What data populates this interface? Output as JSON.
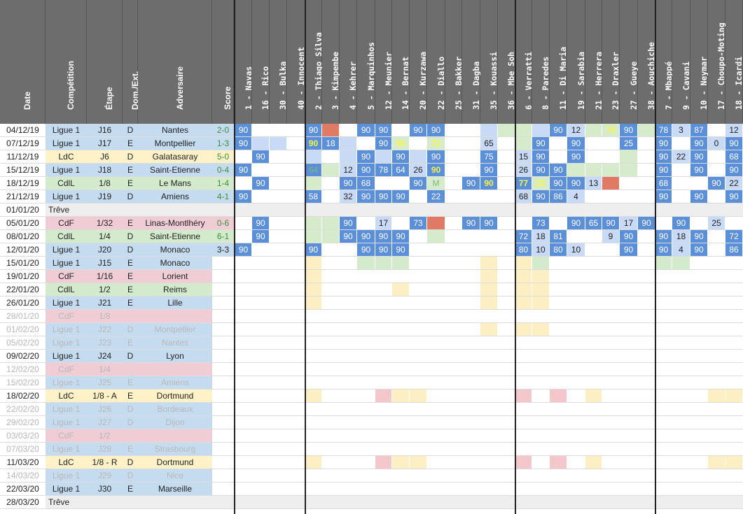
{
  "headers": [
    "Date",
    "Compétition",
    "Étape",
    "Dom./Ext.",
    "Adversaire",
    "Score"
  ],
  "players": [
    {
      "num": "1",
      "name": "Navas"
    },
    {
      "num": "16",
      "name": "Rico"
    },
    {
      "num": "30",
      "name": "Bulka"
    },
    {
      "num": "40",
      "name": "Innocent"
    },
    {
      "num": "2",
      "name": "Thiago Silva"
    },
    {
      "num": "3",
      "name": "Kimpembe"
    },
    {
      "num": "4",
      "name": "Kehrer"
    },
    {
      "num": "5",
      "name": "Marquinhos"
    },
    {
      "num": "12",
      "name": "Meunier"
    },
    {
      "num": "14",
      "name": "Bernat"
    },
    {
      "num": "20",
      "name": "Kurzawa"
    },
    {
      "num": "22",
      "name": "Diallo"
    },
    {
      "num": "25",
      "name": "Bakker"
    },
    {
      "num": "31",
      "name": "Dagba"
    },
    {
      "num": "35",
      "name": "Kouassi"
    },
    {
      "num": "36",
      "name": "Mbe Soh"
    },
    {
      "num": "6",
      "name": "Verratti"
    },
    {
      "num": "8",
      "name": "Paredes"
    },
    {
      "num": "11",
      "name": "Di Maria"
    },
    {
      "num": "19",
      "name": "Sarabia"
    },
    {
      "num": "21",
      "name": "Herrera"
    },
    {
      "num": "23",
      "name": "Draxler"
    },
    {
      "num": "27",
      "name": "Gueye"
    },
    {
      "num": "38",
      "name": "Aouchiche"
    },
    {
      "num": "7",
      "name": "Mbappé"
    },
    {
      "num": "9",
      "name": "Cavani"
    },
    {
      "num": "10",
      "name": "Neymar"
    },
    {
      "num": "17",
      "name": "Choupo-Moting"
    },
    {
      "num": "18",
      "name": "Icardi"
    }
  ],
  "colors": {
    "header_bg": "#6d6d6d",
    "header_text": "#ffffff",
    "ligue1": "#c5dcf0",
    "ldc": "#fff2c8",
    "cdf": "#f0cdd5",
    "cdl": "#d3ebcc",
    "treve": "#eeeeee",
    "future_text": "#b8b8b8",
    "starter": "#5b8fd8",
    "sub": "#c8daf5",
    "bench": "#d5ebcc",
    "injured": "#e07a64",
    "cup_pink": "#f3c7cc",
    "cup_yellow": "#fdefc4",
    "yellow_text": "#f5f54a",
    "green_text": "#7cb87c"
  },
  "matches": [
    {
      "date": "04/12/19",
      "comp": "Ligue 1",
      "stage": "J16",
      "venue": "D",
      "opponent": "Nantes",
      "score": "2-0",
      "status": "played",
      "cells": {
        "0": "S:90",
        "4": "S:90",
        "5": "X",
        "7": "S:90",
        "8": "S:90",
        "10": "S:90",
        "11": "S:90",
        "14": "u",
        "15": "b",
        "16": "b",
        "17": "u",
        "18": "S:90",
        "19": "u:12",
        "20": "b",
        "21": "b:78:y",
        "22": "S:90",
        "23": "b",
        "24": "S:78",
        "25": "u:3",
        "26": "S:87",
        "28": "u:12"
      }
    },
    {
      "date": "07/12/19",
      "comp": "Ligue 1",
      "stage": "J17",
      "venue": "E",
      "opponent": "Montpellier",
      "score": "1-3",
      "status": "played",
      "cells": {
        "0": "S:90",
        "1": "u",
        "2": "u",
        "4": "S:90:y",
        "5": "S:18",
        "6": "u",
        "8": "S:90",
        "9": "b:90:y",
        "11": "b:72:y",
        "14": "u:65",
        "16": "b",
        "17": "S:90",
        "19": "S:90",
        "22": "S:25",
        "24": "S:90",
        "26": "S:90",
        "27": "u:0",
        "28": "S:90"
      }
    },
    {
      "date": "11/12/19",
      "comp": "LdC",
      "stage": "J6",
      "venue": "D",
      "opponent": "Galatasaray",
      "score": "5-0",
      "status": "played",
      "cells": {
        "1": "S:90",
        "4": "u",
        "6": "u",
        "7": "S:90",
        "8": "u",
        "9": "S:90",
        "10": "u",
        "11": "S:90",
        "14": "S:75",
        "16": "u:15",
        "17": "S:90",
        "19": "S:90",
        "22": "b",
        "24": "S:90",
        "25": "u:22",
        "26": "S:90",
        "28": "S:68"
      }
    },
    {
      "date": "15/12/19",
      "comp": "Ligue 1",
      "stage": "J18",
      "venue": "E",
      "opponent": "Saint-Etienne",
      "score": "0-4",
      "status": "played",
      "cells": {
        "0": "S:90",
        "4": "S:64:g",
        "5": "b",
        "6": "u:12",
        "7": "S:90",
        "8": "S:78",
        "9": "S:64",
        "10": "u:26",
        "11": "S:90:y",
        "14": "S:90",
        "16": "u:26",
        "17": "S:90",
        "18": "S:90",
        "19": "b",
        "20": "b",
        "21": "b",
        "22": "b",
        "24": "S:90",
        "26": "S:90",
        "28": "S:90"
      }
    },
    {
      "date": "18/12/19",
      "comp": "CdlL",
      "stage": "1/8",
      "venue": "E",
      "opponent": "Le Mans",
      "score": "1-4",
      "status": "played",
      "cells": {
        "1": "S:90",
        "4": "b",
        "6": "S:90",
        "7": "S:68",
        "10": "S:90",
        "11": "b:M:g",
        "13": "S:90",
        "14": "S:90:y",
        "16": "S:77:y",
        "17": "b:22:y",
        "18": "S:90",
        "19": "S:90",
        "20": "u:13",
        "21": "X",
        "24": "S:68",
        "27": "S:90",
        "28": "u:22"
      }
    },
    {
      "date": "21/12/19",
      "comp": "Ligue 1",
      "stage": "J19",
      "venue": "D",
      "opponent": "Amiens",
      "score": "4-1",
      "status": "played",
      "cells": {
        "0": "S:90",
        "4": "S:58",
        "6": "u:32",
        "7": "S:90",
        "8": "S:90",
        "9": "S:90",
        "11": "S:22",
        "16": "u:68",
        "17": "S:90",
        "18": "S:86",
        "19": "u:4",
        "24": "S:90",
        "26": "S:90",
        "28": "S:90"
      }
    },
    {
      "date": "01/01/20",
      "comp": "Trêve",
      "stage": "",
      "venue": "",
      "opponent": "",
      "score": "",
      "status": "treve",
      "cells": {}
    },
    {
      "date": "05/01/20",
      "comp": "CdF",
      "stage": "1/32",
      "venue": "E",
      "opponent": "Linas-Montlhéry",
      "score": "0-6",
      "status": "played",
      "cells": {
        "1": "S:90",
        "4": "b",
        "5": "b",
        "6": "S:90",
        "8": "u:17",
        "10": "S:73",
        "11": "X",
        "13": "S:90",
        "14": "S:90",
        "17": "S:73",
        "19": "S:90",
        "20": "S:65",
        "21": "S:90",
        "22": "u:17",
        "23": "S:90",
        "25": "S:90",
        "27": "u:25"
      }
    },
    {
      "date": "08/01/20",
      "comp": "CdlL",
      "stage": "1/4",
      "venue": "D",
      "opponent": "Saint-Etienne",
      "score": "6-1",
      "status": "played",
      "cells": {
        "1": "S:90",
        "4": "b",
        "5": "b",
        "6": "S:90",
        "7": "S:90",
        "8": "S:90",
        "9": "S:90",
        "11": "b",
        "16": "S:72",
        "17": "u:18",
        "18": "S:81",
        "21": "u:9",
        "22": "S:90",
        "24": "S:90",
        "25": "u:18",
        "26": "S:90",
        "28": "S:72"
      }
    },
    {
      "date": "12/01/20",
      "comp": "Ligue 1",
      "stage": "J20",
      "venue": "D",
      "opponent": "Monaco",
      "score": "3-3",
      "status": "played",
      "cells": {
        "0": "S:90",
        "4": "S:90",
        "7": "S:90",
        "8": "S:90",
        "9": "S:90",
        "16": "S:80",
        "17": "u:10",
        "18": "S:80",
        "19": "u:10",
        "22": "S:90",
        "24": "S:90",
        "25": "u:4",
        "26": "S:90",
        "28": "S:86"
      }
    },
    {
      "date": "15/01/20",
      "comp": "Ligue 1",
      "stage": "J15",
      "venue": "E",
      "opponent": "Monaco",
      "score": "",
      "status": "upcoming",
      "cells": {
        "4": "c",
        "7": "g",
        "8": "g",
        "9": "g",
        "14": "c",
        "16": "c",
        "17": "g",
        "24": "g",
        "25": "g"
      }
    },
    {
      "date": "19/01/20",
      "comp": "CdF",
      "stage": "1/16",
      "venue": "E",
      "opponent": "Lorient",
      "score": "",
      "status": "upcoming",
      "cells": {
        "4": "c",
        "14": "c",
        "16": "c",
        "17": "c"
      }
    },
    {
      "date": "22/01/20",
      "comp": "CdlL",
      "stage": "1/2",
      "venue": "E",
      "opponent": "Reims",
      "score": "",
      "status": "upcoming",
      "cells": {
        "4": "c",
        "9": "c",
        "14": "c",
        "16": "c",
        "17": "c"
      }
    },
    {
      "date": "26/01/20",
      "comp": "Ligue 1",
      "stage": "J21",
      "venue": "E",
      "opponent": "Lille",
      "score": "",
      "status": "upcoming",
      "cells": {
        "4": "c",
        "14": "c",
        "16": "c",
        "17": "c"
      }
    },
    {
      "date": "28/01/20",
      "comp": "CdF",
      "stage": "1/8",
      "venue": "",
      "opponent": "",
      "score": "",
      "status": "tentative",
      "cells": {}
    },
    {
      "date": "01/02/20",
      "comp": "Ligue 1",
      "stage": "J22",
      "venue": "D",
      "opponent": "Montpellier",
      "score": "",
      "status": "upcoming_faded",
      "cells": {
        "14": "c",
        "16": "c",
        "17": "c"
      }
    },
    {
      "date": "05/02/20",
      "comp": "Ligue 1",
      "stage": "J23",
      "venue": "E",
      "opponent": "Nantes",
      "score": "",
      "status": "upcoming_faded",
      "cells": {}
    },
    {
      "date": "09/02/20",
      "comp": "Ligue 1",
      "stage": "J24",
      "venue": "D",
      "opponent": "Lyon",
      "score": "",
      "status": "upcoming",
      "cells": {}
    },
    {
      "date": "12/02/20",
      "comp": "CdF",
      "stage": "1/4",
      "venue": "",
      "opponent": "",
      "score": "",
      "status": "tentative",
      "cells": {}
    },
    {
      "date": "15/02/20",
      "comp": "Ligue 1",
      "stage": "J25",
      "venue": "E",
      "opponent": "Amiens",
      "score": "",
      "status": "upcoming_faded",
      "cells": {}
    },
    {
      "date": "18/02/20",
      "comp": "LdC",
      "stage": "1/8 - A",
      "venue": "E",
      "opponent": "Dortmund",
      "score": "",
      "status": "upcoming",
      "cells": {
        "4": "c",
        "8": "p",
        "9": "c",
        "10": "c",
        "16": "p",
        "18": "p",
        "20": "c",
        "27": "c",
        "28": "c"
      }
    },
    {
      "date": "22/02/20",
      "comp": "Ligue 1",
      "stage": "J26",
      "venue": "D",
      "opponent": "Bordeaux",
      "score": "",
      "status": "upcoming_faded",
      "cells": {}
    },
    {
      "date": "29/02/20",
      "comp": "Ligue 1",
      "stage": "J27",
      "venue": "D",
      "opponent": "Dijon",
      "score": "",
      "status": "upcoming_faded",
      "cells": {}
    },
    {
      "date": "03/03/20",
      "comp": "CdF",
      "stage": "1/2",
      "venue": "",
      "opponent": "",
      "score": "",
      "status": "tentative",
      "cells": {}
    },
    {
      "date": "07/03/20",
      "comp": "Ligue 1",
      "stage": "J28",
      "venue": "E",
      "opponent": "Strasbourg",
      "score": "",
      "status": "upcoming_faded",
      "cells": {}
    },
    {
      "date": "11/03/20",
      "comp": "LdC",
      "stage": "1/8 - R",
      "venue": "D",
      "opponent": "Dortmund",
      "score": "",
      "status": "upcoming",
      "cells": {
        "4": "c",
        "8": "p",
        "9": "c",
        "10": "c",
        "16": "p",
        "18": "p",
        "20": "c",
        "27": "c",
        "28": "c"
      }
    },
    {
      "date": "14/03/20",
      "comp": "Ligue 1",
      "stage": "J29",
      "venue": "D",
      "opponent": "Nice",
      "score": "",
      "status": "upcoming_faded",
      "cells": {}
    },
    {
      "date": "22/03/20",
      "comp": "Ligue 1",
      "stage": "J30",
      "venue": "E",
      "opponent": "Marseille",
      "score": "",
      "status": "upcoming",
      "cells": {}
    },
    {
      "date": "28/03/20",
      "comp": "Trêve",
      "stage": "",
      "venue": "",
      "opponent": "",
      "score": "",
      "status": "treve",
      "cells": {}
    }
  ]
}
